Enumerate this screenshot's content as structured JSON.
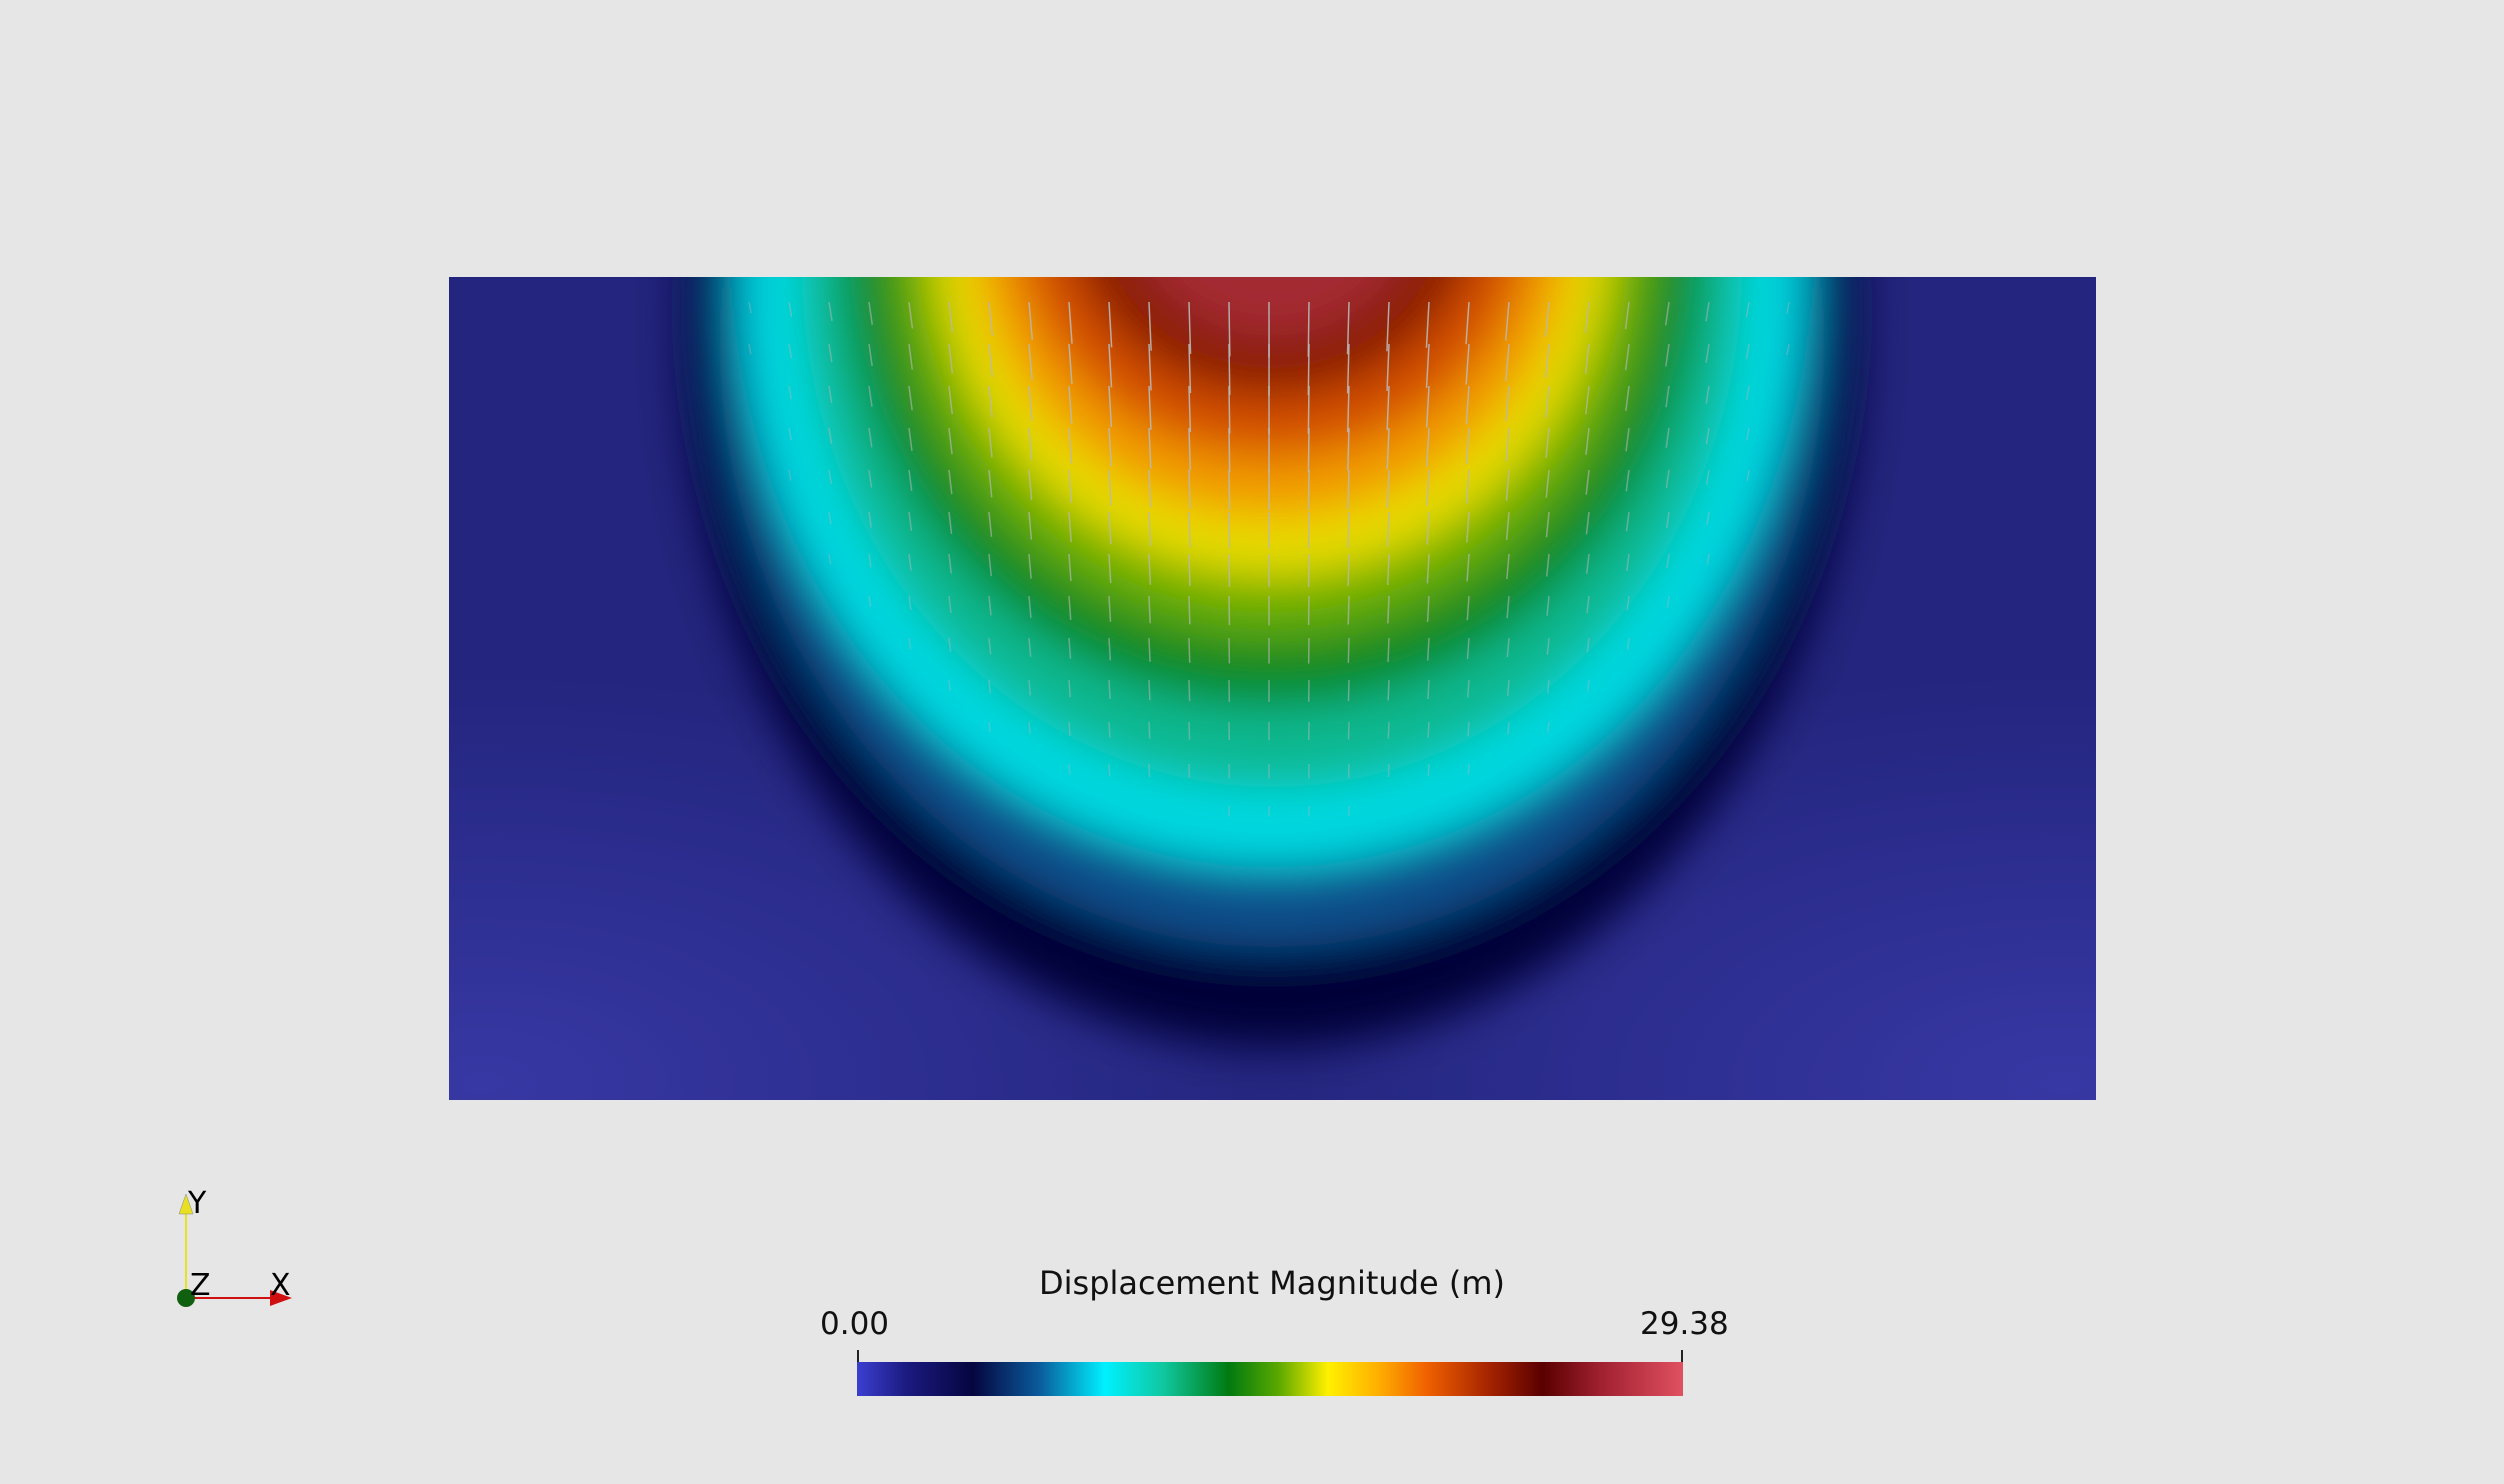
{
  "colorbar": {
    "title": "Displacement Magnitude (m)",
    "min_label": "0.00",
    "max_label": "29.38",
    "range": [
      0.0,
      29.38
    ]
  },
  "axes": {
    "x_label": "X",
    "y_label": "Y",
    "z_label": "Z",
    "colors": {
      "x": "#d01010",
      "y": "#e8e020",
      "z": "#106010"
    }
  },
  "field": {
    "background_color": "#262a88",
    "glyph_color": "#b8b8b8"
  }
}
